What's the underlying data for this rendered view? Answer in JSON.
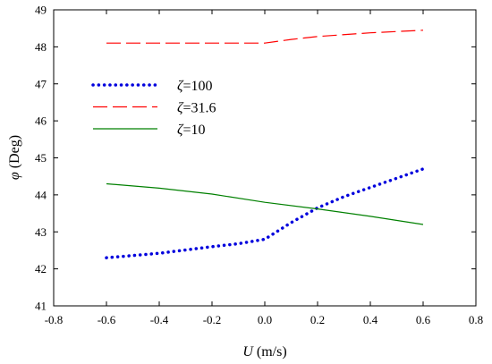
{
  "chart_data": {
    "type": "line",
    "xlabel_var": "U",
    "xlabel_unit": "(m/s)",
    "ylabel_var": "φ",
    "ylabel_unit": "(Deg)",
    "xlim": [
      -0.8,
      0.8
    ],
    "ylim": [
      41,
      49
    ],
    "xticks": [
      "-0.8",
      "-0.6",
      "-0.4",
      "-0.2",
      "0.0",
      "0.2",
      "0.4",
      "0.6",
      "0.8"
    ],
    "yticks": [
      "41",
      "42",
      "43",
      "44",
      "45",
      "46",
      "47",
      "48",
      "49"
    ],
    "grid": false,
    "legend_position": "upper-left",
    "series": [
      {
        "name": "ζ=100",
        "label_var": "ζ",
        "label_val": "=100",
        "color": "#0000dd",
        "style": "dotted",
        "x": [
          -0.6,
          -0.4,
          -0.2,
          -0.1,
          0.0,
          0.1,
          0.2,
          0.3,
          0.4,
          0.5,
          0.6
        ],
        "y": [
          42.3,
          42.42,
          42.6,
          42.68,
          42.8,
          43.25,
          43.65,
          43.95,
          44.2,
          44.45,
          44.7
        ]
      },
      {
        "name": "ζ=31.6",
        "label_var": "ζ",
        "label_val": "=31.6",
        "color": "#ff0000",
        "style": "dashed",
        "x": [
          -0.6,
          -0.4,
          -0.2,
          0.0,
          0.1,
          0.2,
          0.4,
          0.6
        ],
        "y": [
          48.1,
          48.1,
          48.1,
          48.1,
          48.2,
          48.28,
          48.38,
          48.45
        ]
      },
      {
        "name": "ζ=10",
        "label_var": "ζ",
        "label_val": "=10",
        "color": "#008000",
        "style": "solid",
        "x": [
          -0.6,
          -0.4,
          -0.2,
          0.0,
          0.2,
          0.4,
          0.6
        ],
        "y": [
          44.3,
          44.18,
          44.02,
          43.8,
          43.62,
          43.42,
          43.2
        ]
      }
    ]
  }
}
